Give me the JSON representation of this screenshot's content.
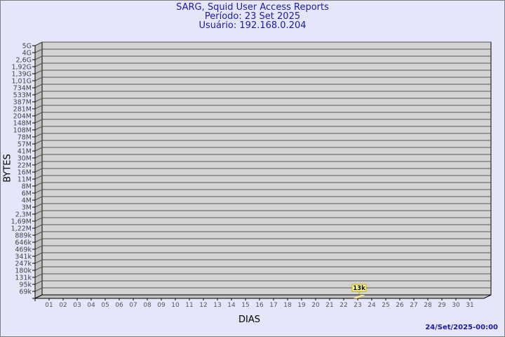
{
  "header": {
    "title": "SARG, Squid User Access Reports",
    "period": "Período: 23 Set 2025",
    "user": "Usuário: 192.168.0.204"
  },
  "footer": "24/Set/2025-00:00",
  "colors": {
    "background": "#e6e6fa",
    "wall": "#d3d3d3",
    "side": "#c0c0c0",
    "title": "#1a1aa8",
    "bar": "#ffe680",
    "label_bg": "#ffff99"
  },
  "chart_data": {
    "type": "bar",
    "xlabel": "DIAS",
    "ylabel": "BYTES",
    "categories": [
      "01",
      "02",
      "03",
      "04",
      "05",
      "06",
      "07",
      "08",
      "09",
      "10",
      "11",
      "12",
      "13",
      "14",
      "15",
      "16",
      "17",
      "18",
      "19",
      "20",
      "21",
      "22",
      "23",
      "24",
      "25",
      "26",
      "27",
      "28",
      "29",
      "30",
      "31"
    ],
    "y_ticks": [
      "5G",
      "4G",
      "2,6G",
      "1,92G",
      "1,39G",
      "1,01G",
      "734M",
      "533M",
      "387M",
      "281M",
      "204M",
      "148M",
      "108M",
      "78M",
      "57M",
      "41M",
      "30M",
      "22M",
      "16M",
      "11M",
      "8M",
      "6M",
      "4M",
      "3M",
      "2,3M",
      "1,69M",
      "1,22M",
      "889k",
      "646k",
      "469k",
      "341k",
      "247k",
      "180k",
      "131k",
      "95k",
      "69k"
    ],
    "y_scale": "log",
    "grid": true,
    "series": [
      {
        "values": [
          null,
          null,
          null,
          null,
          null,
          null,
          null,
          null,
          null,
          null,
          null,
          null,
          null,
          null,
          null,
          null,
          null,
          null,
          null,
          null,
          null,
          null,
          13000,
          null,
          null,
          null,
          null,
          null,
          null,
          null,
          null
        ]
      }
    ],
    "data_labels": [
      {
        "category": "23",
        "text": "13k"
      }
    ]
  }
}
